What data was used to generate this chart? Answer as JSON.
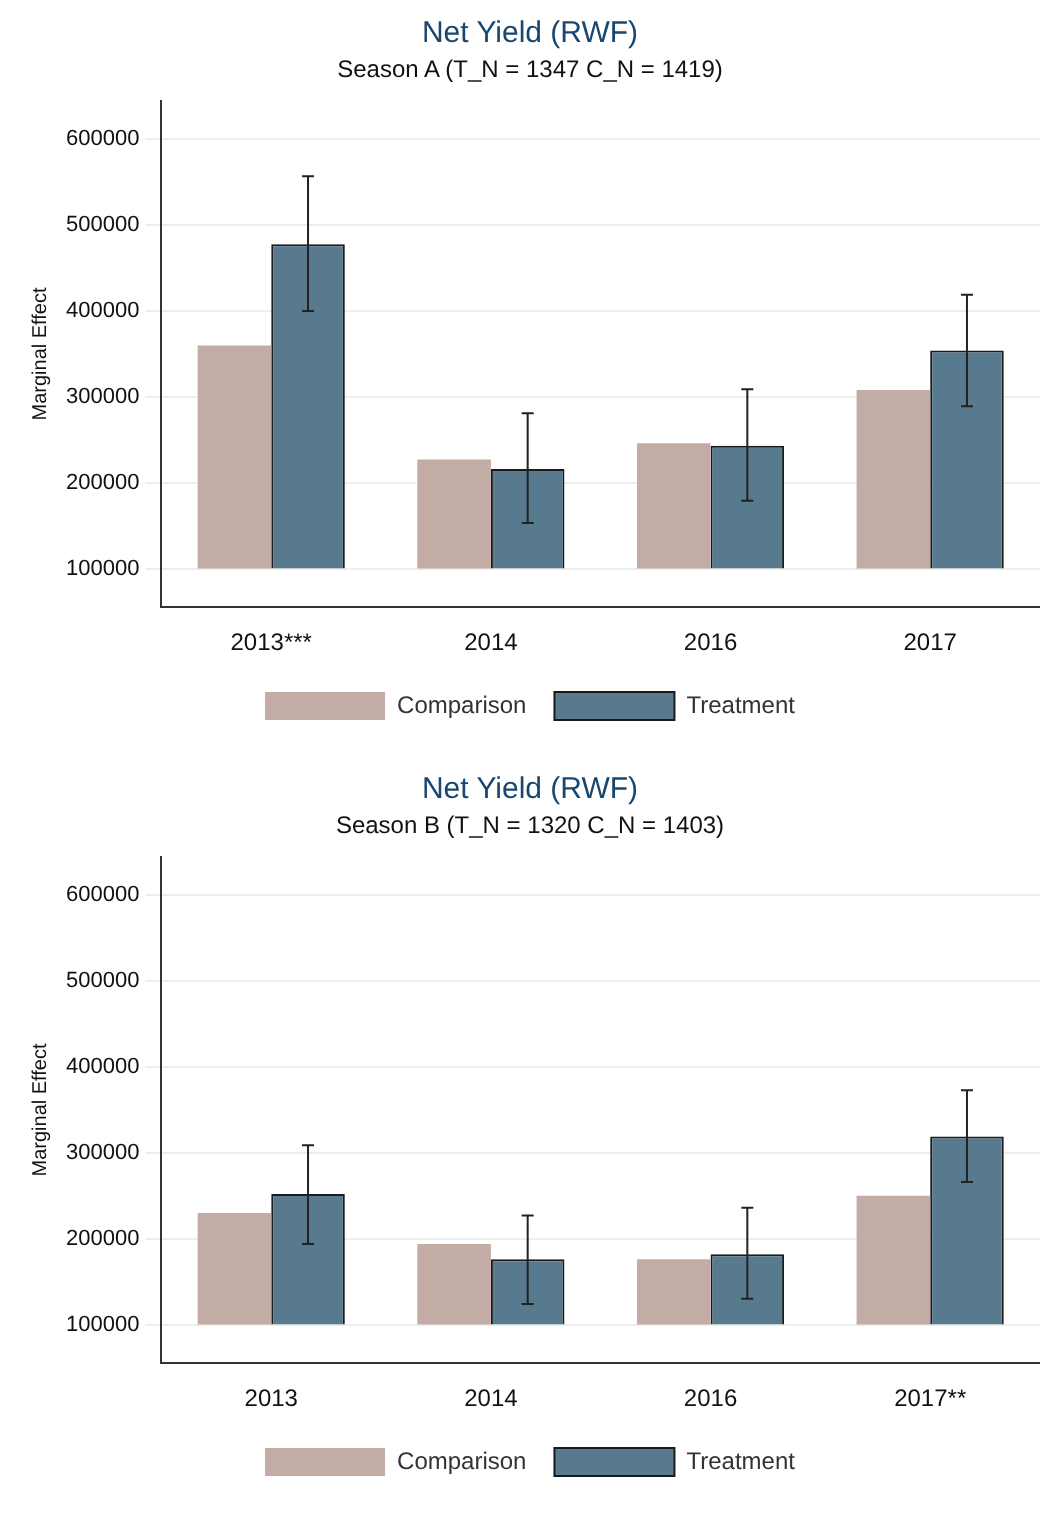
{
  "chart_data": [
    {
      "type": "bar",
      "title": "Net Yield (RWF)",
      "subtitle": "Season A (T_N = 1347 C_N = 1419)",
      "ylabel": "Marginal Effect",
      "categories": [
        "2013***",
        "2014",
        "2016",
        "2017"
      ],
      "series": [
        {
          "name": "Comparison",
          "color": "#c4aca6",
          "base": [
            100000,
            100000,
            100000,
            100000
          ],
          "values": [
            260000,
            127000,
            146000,
            208000
          ]
        },
        {
          "name": "Treatment",
          "color": "#587a8f",
          "base": [
            100000,
            100000,
            100000,
            100000
          ],
          "values": [
            378000,
            116000,
            143000,
            254000
          ],
          "errors": [
            [
              400000,
              557000
            ],
            [
              153000,
              281000
            ],
            [
              179000,
              309000
            ],
            [
              289000,
              419000
            ]
          ]
        }
      ],
      "ylim": [
        55000,
        645000
      ],
      "yticks": [
        100000,
        200000,
        300000,
        400000,
        500000,
        600000
      ],
      "grid": "y",
      "legend": "bottom"
    },
    {
      "type": "bar",
      "title": "Net Yield (RWF)",
      "subtitle": "Season B (T_N = 1320 C_N = 1403)",
      "ylabel": "Marginal Effect",
      "categories": [
        "2013",
        "2014",
        "2016",
        "2017**"
      ],
      "series": [
        {
          "name": "Comparison",
          "color": "#c4aca6",
          "base": [
            100000,
            100000,
            100000,
            100000
          ],
          "values": [
            130000,
            94000,
            76000,
            150000
          ]
        },
        {
          "name": "Treatment",
          "color": "#587a8f",
          "base": [
            100000,
            100000,
            100000,
            100000
          ],
          "values": [
            152000,
            76000,
            82000,
            219000
          ],
          "errors": [
            [
              194000,
              309000
            ],
            [
              124000,
              227000
            ],
            [
              130000,
              236000
            ],
            [
              266000,
              373000
            ]
          ]
        }
      ],
      "ylim": [
        55000,
        645000
      ],
      "yticks": [
        100000,
        200000,
        300000,
        400000,
        500000,
        600000
      ],
      "grid": "y",
      "legend": "bottom"
    }
  ]
}
